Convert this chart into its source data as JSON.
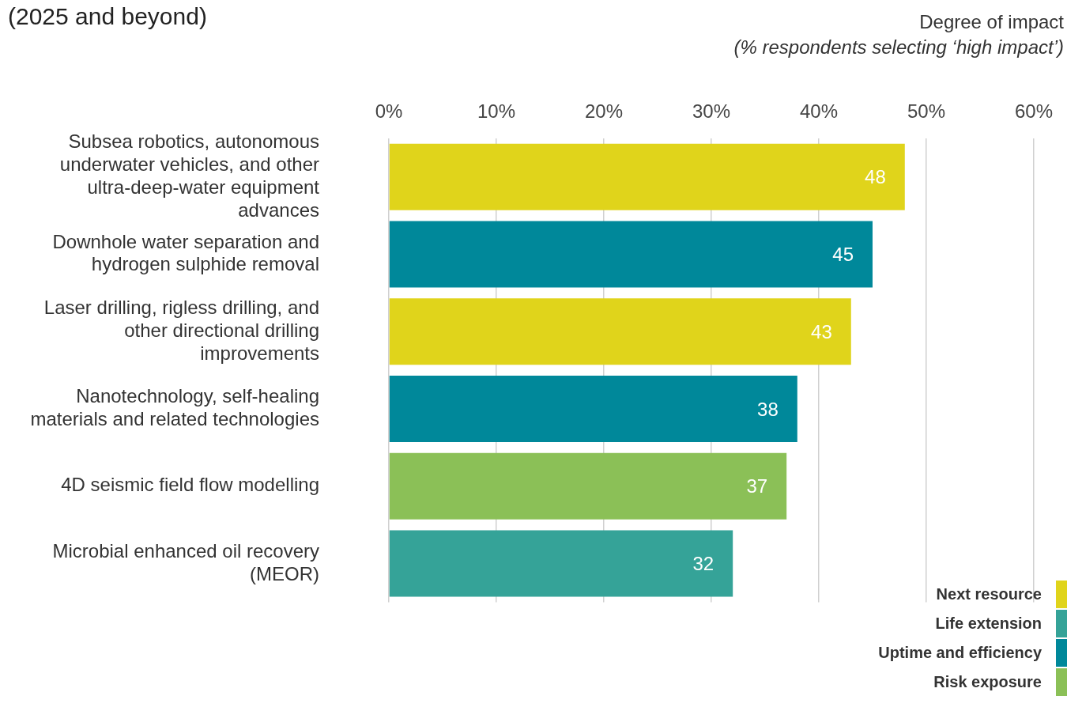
{
  "chart_data": {
    "type": "bar",
    "orientation": "horizontal",
    "stacked": true,
    "title": "(2025 and beyond)",
    "xlabel": "Degree of impact\n(% respondents selecting ‘high impact’)",
    "categories": [
      "Subsea robotics, autonomous underwater vehicles, and other ultra-deep-water equipment advances",
      "Downhole water separation and hydrogen sulphide removal",
      "Laser drilling, rigless drilling, and other directional drilling improvements",
      "Nanotechnology, self-healing materials and related technologies",
      "4D seismic field flow modelling",
      "Microbial enhanced oil recovery (MEOR)"
    ],
    "series": [
      {
        "name": "Next resource",
        "color": "#e0d41b",
        "values": [
          48,
          null,
          43,
          null,
          null,
          null
        ]
      },
      {
        "name": "Life extension",
        "color": "#35a398",
        "values": [
          null,
          null,
          null,
          null,
          null,
          32
        ]
      },
      {
        "name": "Uptime and efficiency",
        "color": "#00889a",
        "values": [
          null,
          45,
          null,
          38,
          null,
          null
        ]
      },
      {
        "name": "Risk exposure",
        "color": "#8bc057",
        "values": [
          null,
          null,
          null,
          null,
          37,
          null
        ]
      }
    ],
    "xlim": [
      0,
      60
    ],
    "xticks": [
      {
        "value": 0,
        "label": "0%"
      },
      {
        "value": 10,
        "label": "10%"
      },
      {
        "value": 20,
        "label": "20%"
      },
      {
        "value": 30,
        "label": "30%"
      },
      {
        "value": 40,
        "label": "40%"
      },
      {
        "value": 50,
        "label": "50%"
      },
      {
        "value": 60,
        "label": "60%"
      }
    ],
    "grid": "x",
    "data_labels": true,
    "legend": "bottom right"
  }
}
